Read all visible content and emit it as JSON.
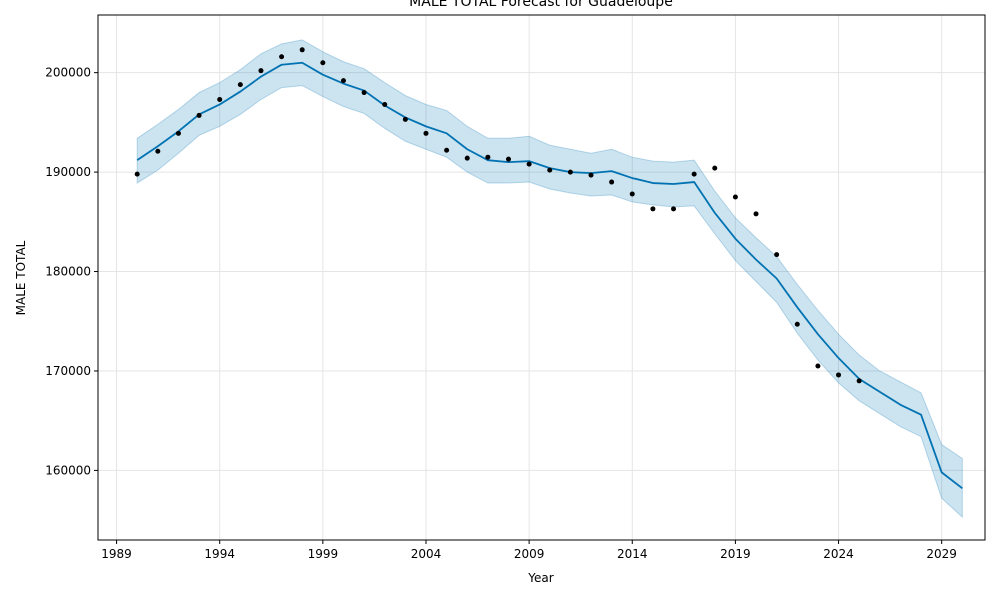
{
  "chart_data": {
    "type": "line",
    "title": "MALE TOTAL Forecast for Guadeloupe",
    "xlabel": "Year",
    "ylabel": "MALE TOTAL",
    "xlim": [
      1988.1,
      2031.1
    ],
    "ylim": [
      153000,
      205800
    ],
    "xticks": [
      1989,
      1994,
      1999,
      2004,
      2009,
      2014,
      2019,
      2024,
      2029
    ],
    "yticks": [
      160000,
      170000,
      180000,
      190000,
      200000
    ],
    "grid": true,
    "colors": {
      "forecast": "#0072B2",
      "band": "#0072B2",
      "actual": "#000000",
      "grid": "#e5e5e5"
    },
    "forecast": {
      "x": [
        1990,
        1991,
        1992,
        1993,
        1994,
        1995,
        1996,
        1997,
        1998,
        1999,
        2000,
        2001,
        2002,
        2003,
        2004,
        2005,
        2006,
        2007,
        2008,
        2009,
        2010,
        2011,
        2012,
        2013,
        2014,
        2015,
        2016,
        2017,
        2018,
        2019,
        2020,
        2021,
        2022,
        2023,
        2024,
        2025,
        2026,
        2027,
        2028,
        2029,
        2030
      ],
      "yhat": [
        191200,
        192600,
        194100,
        195800,
        196800,
        198100,
        199600,
        200800,
        201000,
        199800,
        198900,
        198200,
        196700,
        195500,
        194600,
        193900,
        192300,
        191200,
        191000,
        191100,
        190400,
        190000,
        189900,
        190100,
        189400,
        188900,
        188800,
        189000,
        185900,
        183300,
        181200,
        179300,
        176400,
        173700,
        171300,
        169200,
        167900,
        166600,
        165600,
        159800,
        158200
      ],
      "lower": [
        188900,
        190200,
        191900,
        193700,
        194600,
        195800,
        197300,
        198500,
        198700,
        197600,
        196600,
        195900,
        194400,
        193100,
        192300,
        191500,
        190000,
        188900,
        188900,
        189000,
        188300,
        187900,
        187600,
        187700,
        187000,
        186700,
        186500,
        186600,
        183800,
        181100,
        179000,
        176900,
        173800,
        171100,
        168800,
        167000,
        165700,
        164400,
        163400,
        157200,
        155300
      ],
      "upper": [
        193400,
        194800,
        196300,
        198000,
        199000,
        200300,
        201900,
        202900,
        203300,
        202100,
        201100,
        200400,
        199000,
        197700,
        196800,
        196200,
        194600,
        193400,
        193400,
        193600,
        192700,
        192300,
        191900,
        192300,
        191500,
        191100,
        191000,
        191200,
        188100,
        185400,
        183400,
        181500,
        178700,
        176100,
        173700,
        171600,
        170000,
        168900,
        167800,
        162600,
        161200
      ]
    },
    "actual": {
      "x": [
        1990,
        1991,
        1992,
        1993,
        1994,
        1995,
        1996,
        1997,
        1998,
        1999,
        2000,
        2001,
        2002,
        2003,
        2004,
        2005,
        2006,
        2007,
        2008,
        2009,
        2010,
        2011,
        2012,
        2013,
        2014,
        2015,
        2016,
        2017,
        2018,
        2019,
        2020,
        2021,
        2022,
        2023,
        2024,
        2025
      ],
      "y": [
        189800,
        192100,
        193900,
        195700,
        197300,
        198800,
        200200,
        201600,
        202300,
        201000,
        199200,
        198000,
        196800,
        195300,
        193900,
        192200,
        191400,
        191500,
        191300,
        190800,
        190200,
        190000,
        189700,
        189000,
        187800,
        186300,
        186300,
        189800,
        190400,
        187500,
        185800,
        181700,
        174700,
        170500,
        169600,
        169000
      ]
    }
  }
}
